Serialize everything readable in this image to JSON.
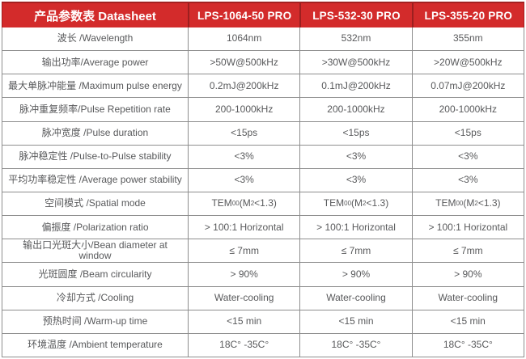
{
  "colors": {
    "header_bg": "#d32b2b",
    "header_divider": "#9c1f1f",
    "header_text": "#ffffff",
    "body_text": "#58595b",
    "border": "#8e8e8e"
  },
  "header": {
    "title": "产品参数表 Datasheet",
    "columns": [
      "LPS-1064-50 PRO",
      "LPS-532-30 PRO",
      "LPS-355-20 PRO"
    ]
  },
  "rows": [
    {
      "label": "波长 /Wavelength",
      "values": [
        "1064nm",
        "532nm",
        "355nm"
      ]
    },
    {
      "label": "输出功率/Average power",
      "values": [
        ">50W@500kHz",
        ">30W@500kHz",
        ">20W@500kHz"
      ]
    },
    {
      "label": "最大单脉冲能量 /Maximum pulse energy",
      "values": [
        "0.2mJ@200kHz",
        "0.1mJ@200kHz",
        "0.07mJ@200kHz"
      ]
    },
    {
      "label": "脉冲重复频率/Pulse Repetition rate",
      "values": [
        "200-1000kHz",
        "200-1000kHz",
        "200-1000kHz"
      ]
    },
    {
      "label": "脉冲宽度 /Pulse duration",
      "values": [
        "<15ps",
        "<15ps",
        "<15ps"
      ]
    },
    {
      "label": "脉冲稳定性 /Pulse-to-Pulse stability",
      "values": [
        "<3%",
        "<3%",
        "<3%"
      ]
    },
    {
      "label": "平均功率稳定性 /Average power stability",
      "values": [
        "<3%",
        "<3%",
        "<3%"
      ]
    },
    {
      "label": "空间模式 /Spatial mode",
      "values": [
        "TEM_{00}(M^{2}<1.3)",
        "TEM_{00}(M^{2}<1.3)",
        "TEM_{00}(M^{2}<1.3)"
      ]
    },
    {
      "label": "偏振度 /Polarization ratio",
      "values": [
        "> 100:1 Horizontal",
        "> 100:1 Horizontal",
        "> 100:1 Horizontal"
      ]
    },
    {
      "label": "输出口光斑大小/Bean diameter at window",
      "values": [
        "≤ 7mm",
        "≤ 7mm",
        "≤ 7mm"
      ]
    },
    {
      "label": "光斑圆度 /Beam circularity",
      "values": [
        "> 90%",
        "> 90%",
        "> 90%"
      ]
    },
    {
      "label": "冷却方式 /Cooling",
      "values": [
        "Water-cooling",
        "Water-cooling",
        "Water-cooling"
      ]
    },
    {
      "label": "预热时间 /Warm-up time",
      "values": [
        "<15 min",
        "<15 min",
        "<15 min"
      ]
    },
    {
      "label": "环境温度 /Ambient temperature",
      "values": [
        "18C° -35C°",
        "18C° -35C°",
        "18C° -35C°"
      ]
    }
  ]
}
